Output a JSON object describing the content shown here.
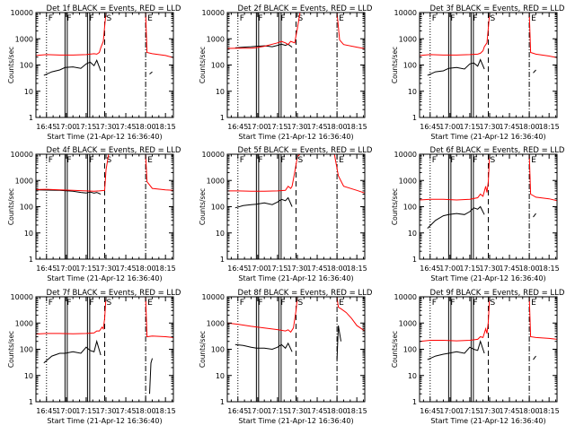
{
  "xlabel": "Start Time (21-Apr-12 16:36:40)",
  "ylabel": "Counts/sec",
  "colors": {
    "events": "#000000",
    "lld": "#ff0000",
    "frame": "#000000"
  },
  "axes": {
    "y_scale": "log",
    "ylim": [
      1,
      10000
    ],
    "y_ticks": [
      1,
      10,
      100,
      1000,
      10000
    ],
    "y_tick_labels": [
      "1",
      "10",
      "100",
      "1000",
      "10000"
    ],
    "x_range_min": [
      -8,
      96
    ],
    "x_ticks_min": [
      0,
      15,
      30,
      45,
      60,
      75,
      90
    ],
    "x_tick_labels": [
      "16:45",
      "17:00",
      "17:15",
      "17:30",
      "17:45",
      "18:00",
      "18:15"
    ]
  },
  "markers": [
    {
      "label": "F",
      "t": 0,
      "style": "dotted"
    },
    {
      "label": "F",
      "t": 14,
      "style": "solid"
    },
    {
      "label": "F",
      "t": 31,
      "style": "solid"
    },
    {
      "label": "S",
      "t": 44,
      "style": "dashed"
    },
    {
      "label": "E",
      "t": 75,
      "style": "dashdot"
    }
  ],
  "chart_data": [
    {
      "type": "line",
      "title": "Det 1f BLACK = Events, RED = LLD",
      "series": [
        {
          "name": "Events",
          "color": "#000000",
          "x": [
            -2,
            4,
            10,
            14,
            20,
            26,
            30,
            33,
            36,
            38,
            41,
            44,
            78,
            80
          ],
          "y": [
            40,
            55,
            65,
            80,
            85,
            75,
            110,
            130,
            95,
            150,
            60,
            null,
            45,
            55
          ]
        },
        {
          "name": "LLD",
          "color": "#ff0000",
          "x": [
            -8,
            0,
            10,
            20,
            30,
            36,
            38,
            40,
            41,
            43,
            44,
            45,
            47,
            60,
            70,
            75,
            76,
            80,
            90,
            96
          ],
          "y": [
            230,
            250,
            240,
            240,
            250,
            270,
            260,
            300,
            450,
            800,
            3000,
            10000,
            10000,
            10000,
            10000,
            10000,
            300,
            270,
            230,
            190
          ]
        }
      ]
    },
    {
      "type": "line",
      "title": "Det 2f BLACK = Events, RED = LLD",
      "series": [
        {
          "name": "Events",
          "color": "#000000",
          "x": [
            -2,
            4,
            10,
            14,
            20,
            26,
            30,
            33,
            36,
            38,
            41,
            44
          ],
          "y": [
            450,
            480,
            500,
            520,
            540,
            500,
            560,
            620,
            560,
            620,
            480,
            null
          ]
        },
        {
          "name": "LLD",
          "color": "#ff0000",
          "x": [
            -8,
            0,
            10,
            14,
            20,
            30,
            33,
            36,
            38,
            40,
            43,
            45,
            47,
            60,
            70,
            75,
            77,
            80,
            90,
            96
          ],
          "y": [
            430,
            440,
            440,
            460,
            520,
            700,
            800,
            700,
            600,
            800,
            700,
            2500,
            10000,
            10000,
            10000,
            10000,
            900,
            600,
            480,
            420
          ]
        }
      ]
    },
    {
      "type": "line",
      "title": "Det 3f BLACK = Events, RED = LLD",
      "series": [
        {
          "name": "Events",
          "color": "#000000",
          "x": [
            -2,
            4,
            10,
            14,
            20,
            26,
            30,
            33,
            36,
            38,
            41,
            44,
            78,
            80
          ],
          "y": [
            40,
            55,
            60,
            75,
            80,
            70,
            110,
            120,
            90,
            160,
            70,
            null,
            50,
            65
          ]
        },
        {
          "name": "LLD",
          "color": "#ff0000",
          "x": [
            -8,
            0,
            10,
            20,
            30,
            36,
            38,
            40,
            41,
            43,
            44,
            45,
            47,
            60,
            70,
            75,
            76,
            80,
            90,
            96
          ],
          "y": [
            230,
            250,
            240,
            240,
            250,
            260,
            280,
            350,
            500,
            700,
            2500,
            10000,
            10000,
            10000,
            10000,
            10000,
            300,
            260,
            220,
            190
          ]
        }
      ]
    },
    {
      "type": "line",
      "title": "Det 4f BLACK = Events, RED = LLD",
      "series": [
        {
          "name": "Events",
          "color": "#000000",
          "x": [
            -8,
            0,
            10,
            20,
            26,
            30,
            33,
            36,
            38,
            41,
            44
          ],
          "y": [
            440,
            430,
            420,
            390,
            350,
            330,
            360,
            330,
            350,
            300,
            null
          ]
        },
        {
          "name": "LLD",
          "color": "#ff0000",
          "x": [
            -8,
            0,
            10,
            20,
            30,
            36,
            40,
            44,
            45,
            47,
            60,
            70,
            75,
            76,
            80,
            90,
            96
          ],
          "y": [
            450,
            460,
            440,
            420,
            400,
            390,
            400,
            420,
            2500,
            10000,
            10000,
            10000,
            10000,
            900,
            500,
            440,
            420
          ]
        }
      ]
    },
    {
      "type": "line",
      "title": "Det 5f BLACK = Events, RED = LLD",
      "series": [
        {
          "name": "Events",
          "color": "#000000",
          "x": [
            -2,
            4,
            10,
            14,
            20,
            26,
            30,
            33,
            36,
            38,
            41,
            44
          ],
          "y": [
            90,
            110,
            120,
            125,
            140,
            120,
            150,
            190,
            170,
            220,
            100,
            null
          ]
        },
        {
          "name": "LLD",
          "color": "#ff0000",
          "x": [
            -8,
            0,
            10,
            20,
            30,
            36,
            38,
            40,
            41,
            43,
            45,
            47,
            60,
            70,
            73,
            76,
            80,
            90,
            96
          ],
          "y": [
            400,
            400,
            390,
            390,
            400,
            420,
            600,
            500,
            600,
            2000,
            8000,
            10000,
            10000,
            10000,
            10000,
            1500,
            600,
            420,
            330
          ]
        }
      ]
    },
    {
      "type": "line",
      "title": "Det 6f BLACK = Events, RED = LLD",
      "series": [
        {
          "name": "Events",
          "color": "#000000",
          "x": [
            -2,
            4,
            10,
            14,
            20,
            26,
            30,
            33,
            36,
            38,
            41,
            44,
            78,
            80
          ],
          "y": [
            15,
            30,
            45,
            50,
            55,
            50,
            65,
            90,
            80,
            100,
            50,
            null,
            40,
            55
          ]
        },
        {
          "name": "LLD",
          "color": "#ff0000",
          "x": [
            -8,
            0,
            10,
            20,
            30,
            36,
            38,
            40,
            42,
            43,
            44,
            45,
            47,
            60,
            70,
            75,
            76,
            80,
            90,
            96
          ],
          "y": [
            180,
            190,
            190,
            180,
            190,
            220,
            300,
            250,
            600,
            350,
            900,
            10000,
            10000,
            10000,
            10000,
            10000,
            300,
            230,
            200,
            170
          ]
        }
      ]
    },
    {
      "type": "line",
      "title": "Det 7f BLACK = Events, RED = LLD",
      "series": [
        {
          "name": "Events",
          "color": "#000000",
          "x": [
            -2,
            4,
            10,
            14,
            20,
            26,
            30,
            33,
            36,
            38,
            41,
            44,
            78,
            79,
            80
          ],
          "y": [
            30,
            55,
            70,
            70,
            80,
            70,
            120,
            90,
            80,
            200,
            60,
            null,
            2,
            30,
            45
          ]
        },
        {
          "name": "LLD",
          "color": "#ff0000",
          "x": [
            -8,
            0,
            10,
            20,
            30,
            36,
            38,
            40,
            42,
            43,
            44,
            45,
            47,
            60,
            70,
            75,
            76,
            80,
            90,
            96
          ],
          "y": [
            380,
            400,
            400,
            390,
            400,
            420,
            500,
            500,
            700,
            600,
            1500,
            10000,
            10000,
            10000,
            10000,
            10000,
            300,
            320,
            300,
            280
          ]
        }
      ]
    },
    {
      "type": "line",
      "title": "Det 8f BLACK = Events, RED = LLD",
      "series": [
        {
          "name": "Events",
          "color": "#000000",
          "x": [
            -2,
            4,
            10,
            14,
            20,
            26,
            30,
            33,
            36,
            38,
            41,
            44,
            75,
            76,
            78
          ],
          "y": [
            150,
            140,
            120,
            110,
            110,
            100,
            120,
            150,
            110,
            170,
            80,
            null,
            40,
            800,
            200
          ]
        },
        {
          "name": "LLD",
          "color": "#ff0000",
          "x": [
            -8,
            0,
            10,
            20,
            30,
            36,
            38,
            40,
            42,
            44,
            45,
            47,
            60,
            70,
            74,
            75,
            76,
            78,
            82,
            86,
            90,
            96
          ],
          "y": [
            1000,
            900,
            750,
            650,
            560,
            500,
            550,
            450,
            650,
            3000,
            10000,
            10000,
            10000,
            10000,
            10000,
            10000,
            4000,
            3500,
            2500,
            1500,
            800,
            500
          ]
        }
      ]
    },
    {
      "type": "line",
      "title": "Det 9f BLACK = Events, RED = LLD",
      "series": [
        {
          "name": "Events",
          "color": "#000000",
          "x": [
            -2,
            4,
            10,
            14,
            20,
            26,
            30,
            33,
            36,
            38,
            41,
            44,
            78,
            80
          ],
          "y": [
            40,
            55,
            65,
            70,
            80,
            70,
            120,
            100,
            90,
            200,
            70,
            null,
            40,
            55
          ]
        },
        {
          "name": "LLD",
          "color": "#ff0000",
          "x": [
            -8,
            0,
            10,
            20,
            30,
            36,
            38,
            40,
            42,
            43,
            44,
            45,
            47,
            60,
            70,
            75,
            76,
            80,
            90,
            96
          ],
          "y": [
            200,
            220,
            220,
            210,
            220,
            240,
            300,
            280,
            600,
            400,
            1100,
            10000,
            10000,
            10000,
            10000,
            10000,
            300,
            280,
            260,
            240
          ]
        }
      ]
    }
  ]
}
